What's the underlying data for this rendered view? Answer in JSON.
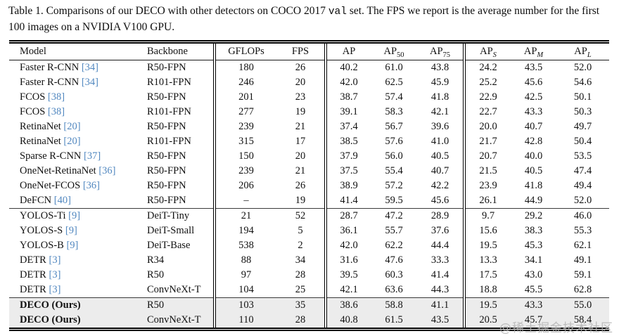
{
  "caption": {
    "part1": "Table 1. Comparisons of our DECO with other detectors on COCO 2017",
    "code": "val",
    "part2": "set. The FPS we report is the average number for the first 100 images on a NVIDIA V100 GPU."
  },
  "colors": {
    "citation": "#5288c0",
    "row_highlight": "#ececec",
    "watermark": "#b5b5b5",
    "rule": "#000000"
  },
  "watermark": "@稀土掘金技术社区",
  "table": {
    "columns": [
      {
        "id": "model",
        "label": "Model",
        "sub": null,
        "align": "left",
        "group_start": false
      },
      {
        "id": "backbone",
        "label": "Backbone",
        "sub": null,
        "align": "left",
        "group_start": false
      },
      {
        "id": "gflops",
        "label": "GFLOPs",
        "sub": null,
        "align": "center",
        "group_start": true
      },
      {
        "id": "fps",
        "label": "FPS",
        "sub": null,
        "align": "center",
        "group_start": false
      },
      {
        "id": "ap",
        "label": "AP",
        "sub": null,
        "align": "center",
        "group_start": true
      },
      {
        "id": "ap50",
        "label": "AP",
        "sub": "50",
        "sub_italic": false,
        "align": "center",
        "group_start": false
      },
      {
        "id": "ap75",
        "label": "AP",
        "sub": "75",
        "sub_italic": false,
        "align": "center",
        "group_start": false
      },
      {
        "id": "aps",
        "label": "AP",
        "sub": "S",
        "sub_italic": true,
        "align": "center",
        "group_start": true
      },
      {
        "id": "apm",
        "label": "AP",
        "sub": "M",
        "sub_italic": true,
        "align": "center",
        "group_start": false
      },
      {
        "id": "apl",
        "label": "AP",
        "sub": "L",
        "sub_italic": true,
        "align": "center",
        "group_start": false
      }
    ],
    "rows": [
      {
        "model": "Faster R-CNN",
        "ref": "[34]",
        "bold": false,
        "highlight": false,
        "section_start": false,
        "values": {
          "backbone": "R50-FPN",
          "gflops": "180",
          "fps": "26",
          "ap": "40.2",
          "ap50": "61.0",
          "ap75": "43.8",
          "aps": "24.2",
          "apm": "43.5",
          "apl": "52.0"
        }
      },
      {
        "model": "Faster R-CNN",
        "ref": "[34]",
        "bold": false,
        "highlight": false,
        "section_start": false,
        "values": {
          "backbone": "R101-FPN",
          "gflops": "246",
          "fps": "20",
          "ap": "42.0",
          "ap50": "62.5",
          "ap75": "45.9",
          "aps": "25.2",
          "apm": "45.6",
          "apl": "54.6"
        }
      },
      {
        "model": "FCOS",
        "ref": "[38]",
        "bold": false,
        "highlight": false,
        "section_start": false,
        "values": {
          "backbone": "R50-FPN",
          "gflops": "201",
          "fps": "23",
          "ap": "38.7",
          "ap50": "57.4",
          "ap75": "41.8",
          "aps": "22.9",
          "apm": "42.5",
          "apl": "50.1"
        }
      },
      {
        "model": "FCOS",
        "ref": "[38]",
        "bold": false,
        "highlight": false,
        "section_start": false,
        "values": {
          "backbone": "R101-FPN",
          "gflops": "277",
          "fps": "19",
          "ap": "39.1",
          "ap50": "58.3",
          "ap75": "42.1",
          "aps": "22.7",
          "apm": "43.3",
          "apl": "50.3"
        }
      },
      {
        "model": "RetinaNet",
        "ref": "[20]",
        "bold": false,
        "highlight": false,
        "section_start": false,
        "values": {
          "backbone": "R50-FPN",
          "gflops": "239",
          "fps": "21",
          "ap": "37.4",
          "ap50": "56.7",
          "ap75": "39.6",
          "aps": "20.0",
          "apm": "40.7",
          "apl": "49.7"
        }
      },
      {
        "model": "RetinaNet",
        "ref": "[20]",
        "bold": false,
        "highlight": false,
        "section_start": false,
        "values": {
          "backbone": "R101-FPN",
          "gflops": "315",
          "fps": "17",
          "ap": "38.5",
          "ap50": "57.6",
          "ap75": "41.0",
          "aps": "21.7",
          "apm": "42.8",
          "apl": "50.4"
        }
      },
      {
        "model": "Sparse R-CNN",
        "ref": "[37]",
        "bold": false,
        "highlight": false,
        "section_start": false,
        "values": {
          "backbone": "R50-FPN",
          "gflops": "150",
          "fps": "20",
          "ap": "37.9",
          "ap50": "56.0",
          "ap75": "40.5",
          "aps": "20.7",
          "apm": "40.0",
          "apl": "53.5"
        }
      },
      {
        "model": "OneNet-RetinaNet",
        "ref": "[36]",
        "bold": false,
        "highlight": false,
        "section_start": false,
        "values": {
          "backbone": "R50-FPN",
          "gflops": "239",
          "fps": "21",
          "ap": "37.5",
          "ap50": "55.4",
          "ap75": "40.7",
          "aps": "21.5",
          "apm": "40.5",
          "apl": "47.4"
        }
      },
      {
        "model": "OneNet-FCOS",
        "ref": "[36]",
        "bold": false,
        "highlight": false,
        "section_start": false,
        "values": {
          "backbone": "R50-FPN",
          "gflops": "206",
          "fps": "26",
          "ap": "38.9",
          "ap50": "57.2",
          "ap75": "42.2",
          "aps": "23.9",
          "apm": "41.8",
          "apl": "49.4"
        }
      },
      {
        "model": "DeFCN",
        "ref": "[40]",
        "bold": false,
        "highlight": false,
        "section_start": false,
        "values": {
          "backbone": "R50-FPN",
          "gflops": "–",
          "fps": "19",
          "ap": "41.4",
          "ap50": "59.5",
          "ap75": "45.6",
          "aps": "26.1",
          "apm": "44.9",
          "apl": "52.0"
        }
      },
      {
        "model": "YOLOS-Ti",
        "ref": "[9]",
        "bold": false,
        "highlight": false,
        "section_start": true,
        "values": {
          "backbone": "DeiT-Tiny",
          "gflops": "21",
          "fps": "52",
          "ap": "28.7",
          "ap50": "47.2",
          "ap75": "28.9",
          "aps": "9.7",
          "apm": "29.2",
          "apl": "46.0"
        }
      },
      {
        "model": "YOLOS-S",
        "ref": "[9]",
        "bold": false,
        "highlight": false,
        "section_start": false,
        "values": {
          "backbone": "DeiT-Small",
          "gflops": "194",
          "fps": "5",
          "ap": "36.1",
          "ap50": "55.7",
          "ap75": "37.6",
          "aps": "15.6",
          "apm": "38.3",
          "apl": "55.3"
        }
      },
      {
        "model": "YOLOS-B",
        "ref": "[9]",
        "bold": false,
        "highlight": false,
        "section_start": false,
        "values": {
          "backbone": "DeiT-Base",
          "gflops": "538",
          "fps": "2",
          "ap": "42.0",
          "ap50": "62.2",
          "ap75": "44.4",
          "aps": "19.5",
          "apm": "45.3",
          "apl": "62.1"
        }
      },
      {
        "model": "DETR",
        "ref": "[3]",
        "bold": false,
        "highlight": false,
        "section_start": false,
        "values": {
          "backbone": "R34",
          "gflops": "88",
          "fps": "34",
          "ap": "31.6",
          "ap50": "47.6",
          "ap75": "33.3",
          "aps": "13.3",
          "apm": "34.1",
          "apl": "49.1"
        }
      },
      {
        "model": "DETR",
        "ref": "[3]",
        "bold": false,
        "highlight": false,
        "section_start": false,
        "values": {
          "backbone": "R50",
          "gflops": "97",
          "fps": "28",
          "ap": "39.5",
          "ap50": "60.3",
          "ap75": "41.4",
          "aps": "17.5",
          "apm": "43.0",
          "apl": "59.1"
        }
      },
      {
        "model": "DETR",
        "ref": "[3]",
        "bold": false,
        "highlight": false,
        "section_start": false,
        "values": {
          "backbone": "ConvNeXt-T",
          "gflops": "104",
          "fps": "25",
          "ap": "42.1",
          "ap50": "63.6",
          "ap75": "44.3",
          "aps": "18.8",
          "apm": "45.5",
          "apl": "62.8"
        }
      },
      {
        "model": "DECO (Ours)",
        "ref": "",
        "bold": true,
        "highlight": true,
        "section_start": true,
        "values": {
          "backbone": "R50",
          "gflops": "103",
          "fps": "35",
          "ap": "38.6",
          "ap50": "58.8",
          "ap75": "41.1",
          "aps": "19.5",
          "apm": "43.3",
          "apl": "55.0"
        }
      },
      {
        "model": "DECO (Ours)",
        "ref": "",
        "bold": true,
        "highlight": true,
        "section_start": false,
        "values": {
          "backbone": "ConvNeXt-T",
          "gflops": "110",
          "fps": "28",
          "ap": "40.8",
          "ap50": "61.5",
          "ap75": "43.5",
          "aps": "20.5",
          "apm": "45.7",
          "apl": "58.4"
        }
      }
    ]
  }
}
